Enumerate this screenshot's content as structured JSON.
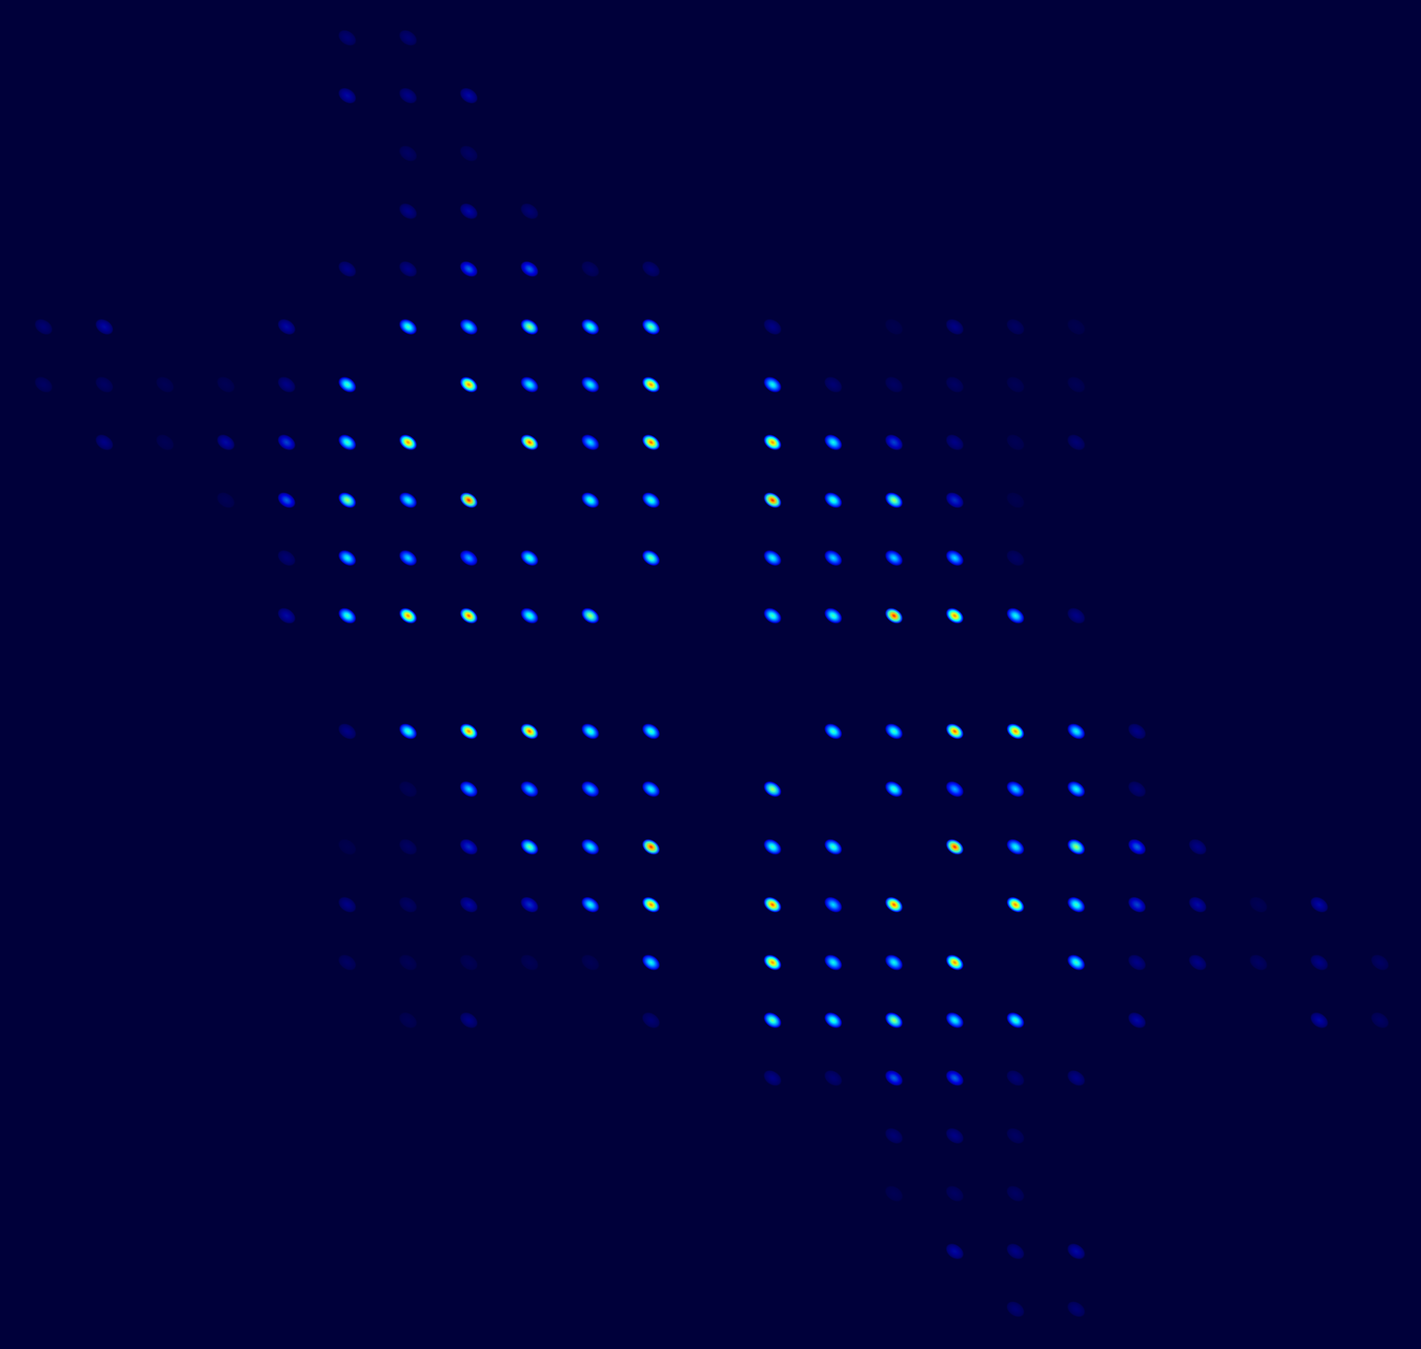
{
  "chart_data": {
    "type": "heatmap",
    "tick_labels": false,
    "zlim": [
      0,
      1
    ],
    "cells": [
      [
        0,
        0,
        0,
        0,
        0,
        0.1,
        0.1,
        0,
        0,
        0,
        0,
        0,
        0,
        0,
        0,
        0,
        0,
        0,
        0,
        0,
        0,
        0,
        0
      ],
      [
        0,
        0,
        0,
        0,
        0,
        0.15,
        0.12,
        0.15,
        0,
        0,
        0,
        0,
        0,
        0,
        0,
        0,
        0,
        0,
        0,
        0,
        0,
        0,
        0
      ],
      [
        0,
        0,
        0,
        0,
        0,
        0,
        0.08,
        0.08,
        0,
        0,
        0,
        0,
        0,
        0,
        0,
        0,
        0,
        0,
        0,
        0,
        0,
        0,
        0
      ],
      [
        0,
        0,
        0,
        0,
        0,
        0,
        0.12,
        0.15,
        0.1,
        0,
        0,
        0,
        0,
        0,
        0,
        0,
        0,
        0,
        0,
        0,
        0,
        0,
        0
      ],
      [
        0,
        0,
        0,
        0,
        0,
        0.12,
        0.12,
        0.25,
        0.25,
        0.08,
        0.1,
        0,
        0,
        0,
        0,
        0,
        0,
        0,
        0,
        0,
        0,
        0,
        0
      ],
      [
        0.1,
        0.15,
        0,
        0,
        0.15,
        0,
        0.45,
        0.4,
        0.55,
        0.45,
        0.5,
        0,
        0.12,
        0,
        0.05,
        0.12,
        0.08,
        0.05,
        0,
        0,
        0,
        0,
        0
      ],
      [
        0.08,
        0.08,
        0.06,
        0.06,
        0.12,
        0.45,
        0,
        0.75,
        0.4,
        0.4,
        0.75,
        0,
        0.4,
        0.1,
        0.08,
        0.08,
        0.06,
        0.06,
        0,
        0,
        0,
        0,
        0
      ],
      [
        0,
        0.12,
        0.06,
        0.15,
        0.22,
        0.45,
        0.75,
        0,
        0.8,
        0.35,
        0.8,
        0,
        0.75,
        0.4,
        0.22,
        0.12,
        0.06,
        0.1,
        0,
        0,
        0,
        0,
        0
      ],
      [
        0,
        0,
        0,
        0.06,
        0.25,
        0.55,
        0.4,
        0.85,
        0,
        0.45,
        0.45,
        0,
        0.85,
        0.45,
        0.55,
        0.2,
        0.05,
        0,
        0,
        0,
        0,
        0,
        0
      ],
      [
        0,
        0,
        0,
        0,
        0.1,
        0.4,
        0.35,
        0.3,
        0.45,
        0,
        0.5,
        0,
        0.4,
        0.35,
        0.35,
        0.35,
        0.08,
        0,
        0,
        0,
        0,
        0,
        0
      ],
      [
        0,
        0,
        0,
        0,
        0.15,
        0.45,
        0.75,
        0.8,
        0.45,
        0.55,
        0,
        0,
        0.45,
        0.45,
        0.85,
        0.75,
        0.4,
        0.12,
        0,
        0,
        0,
        0,
        0
      ],
      [
        0,
        0,
        0,
        0,
        0,
        0,
        0,
        0,
        0,
        0,
        0,
        0,
        0,
        0,
        0,
        0,
        0,
        0,
        0,
        0,
        0,
        0,
        0
      ],
      [
        0,
        0,
        0,
        0,
        0,
        0.12,
        0.45,
        0.75,
        0.8,
        0.45,
        0.45,
        0,
        0,
        0.45,
        0.45,
        0.8,
        0.75,
        0.4,
        0.12,
        0,
        0,
        0,
        0
      ],
      [
        0,
        0,
        0,
        0,
        0,
        0,
        0.06,
        0.35,
        0.35,
        0.35,
        0.4,
        0,
        0.55,
        0,
        0.45,
        0.3,
        0.35,
        0.4,
        0.1,
        0,
        0,
        0,
        0
      ],
      [
        0,
        0,
        0,
        0,
        0,
        0.05,
        0.08,
        0.2,
        0.5,
        0.4,
        0.85,
        0,
        0.45,
        0.45,
        0,
        0.85,
        0.4,
        0.55,
        0.25,
        0.12,
        0,
        0,
        0
      ],
      [
        0,
        0,
        0,
        0,
        0,
        0.12,
        0.08,
        0.15,
        0.2,
        0.4,
        0.75,
        0,
        0.8,
        0.35,
        0.8,
        0,
        0.75,
        0.45,
        0.22,
        0.15,
        0.06,
        0.15,
        0
      ],
      [
        0,
        0,
        0,
        0,
        0,
        0.08,
        0.06,
        0.06,
        0.06,
        0.06,
        0.4,
        0,
        0.75,
        0.4,
        0.4,
        0.75,
        0,
        0.45,
        0.12,
        0.12,
        0.08,
        0.12,
        0.08
      ],
      [
        0,
        0,
        0,
        0,
        0,
        0,
        0.06,
        0.12,
        0,
        0,
        0.1,
        0,
        0.5,
        0.45,
        0.55,
        0.4,
        0.45,
        0,
        0.15,
        0,
        0,
        0.15,
        0.08
      ],
      [
        0,
        0,
        0,
        0,
        0,
        0,
        0,
        0,
        0,
        0,
        0,
        0,
        0.12,
        0.1,
        0.25,
        0.25,
        0.1,
        0.12,
        0,
        0,
        0,
        0,
        0
      ],
      [
        0,
        0,
        0,
        0,
        0,
        0,
        0,
        0,
        0,
        0,
        0,
        0,
        0,
        0,
        0.1,
        0.12,
        0.08,
        0,
        0,
        0,
        0,
        0,
        0
      ],
      [
        0,
        0,
        0,
        0,
        0,
        0,
        0,
        0,
        0,
        0,
        0,
        0,
        0,
        0,
        0.06,
        0.08,
        0.08,
        0,
        0,
        0,
        0,
        0,
        0
      ],
      [
        0,
        0,
        0,
        0,
        0,
        0,
        0,
        0,
        0,
        0,
        0,
        0,
        0,
        0,
        0,
        0.15,
        0.12,
        0.15,
        0,
        0,
        0,
        0,
        0
      ],
      [
        0,
        0,
        0,
        0,
        0,
        0,
        0,
        0,
        0,
        0,
        0,
        0,
        0,
        0,
        0,
        0,
        0.1,
        0.1,
        0,
        0,
        0,
        0,
        0
      ]
    ]
  }
}
